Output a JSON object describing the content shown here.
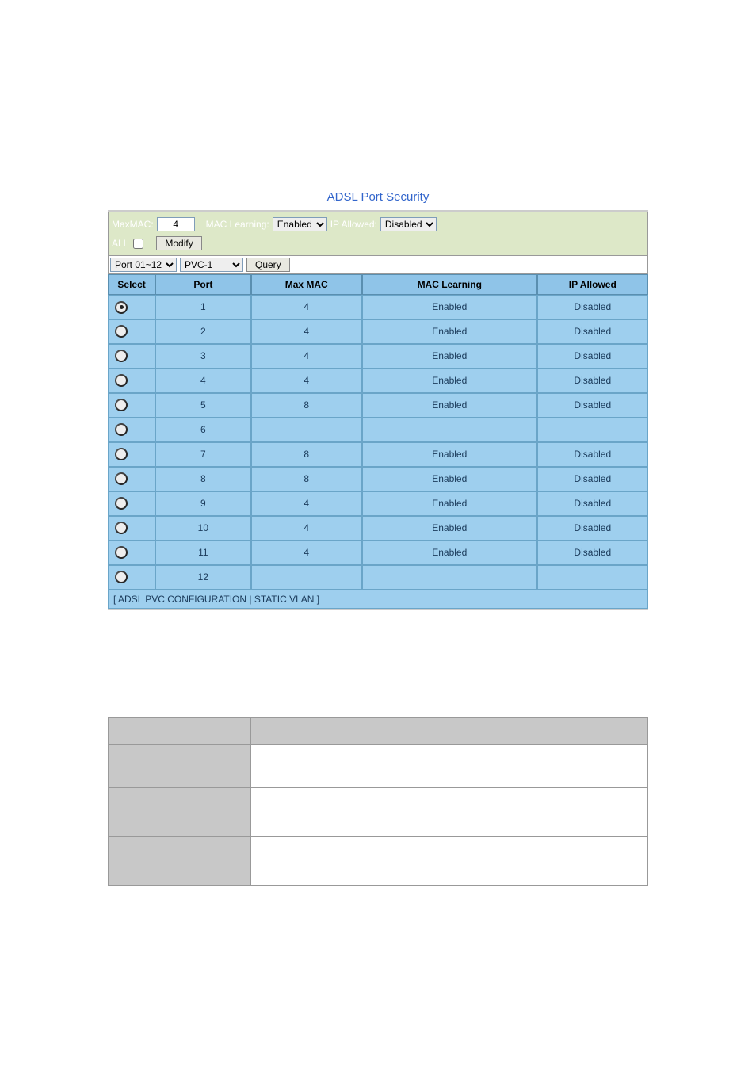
{
  "title": "ADSL Port Security",
  "controls": {
    "maxmac_label": "MaxMAC:",
    "maxmac_value": "4",
    "maclearn_label": "MAC Learning:",
    "maclearn_value": "Enabled",
    "ipallowed_label": "IP Allowed:",
    "ipallowed_value": "Disabled",
    "all_label": "ALL",
    "modify_btn": "Modify",
    "port_range": "Port 01~12",
    "pvc": "PVC-1",
    "query_btn": "Query"
  },
  "table": {
    "headers": {
      "select": "Select",
      "port": "Port",
      "maxmac": "Max MAC",
      "maclearn": "MAC Learning",
      "ipallowed": "IP Allowed"
    },
    "rows": [
      {
        "selected": true,
        "port": "1",
        "maxmac": "4",
        "maclearn": "Enabled",
        "ipallowed": "Disabled"
      },
      {
        "selected": false,
        "port": "2",
        "maxmac": "4",
        "maclearn": "Enabled",
        "ipallowed": "Disabled"
      },
      {
        "selected": false,
        "port": "3",
        "maxmac": "4",
        "maclearn": "Enabled",
        "ipallowed": "Disabled"
      },
      {
        "selected": false,
        "port": "4",
        "maxmac": "4",
        "maclearn": "Enabled",
        "ipallowed": "Disabled"
      },
      {
        "selected": false,
        "port": "5",
        "maxmac": "8",
        "maclearn": "Enabled",
        "ipallowed": "Disabled"
      },
      {
        "selected": false,
        "port": "6",
        "maxmac": "",
        "maclearn": "",
        "ipallowed": ""
      },
      {
        "selected": false,
        "port": "7",
        "maxmac": "8",
        "maclearn": "Enabled",
        "ipallowed": "Disabled"
      },
      {
        "selected": false,
        "port": "8",
        "maxmac": "8",
        "maclearn": "Enabled",
        "ipallowed": "Disabled"
      },
      {
        "selected": false,
        "port": "9",
        "maxmac": "4",
        "maclearn": "Enabled",
        "ipallowed": "Disabled"
      },
      {
        "selected": false,
        "port": "10",
        "maxmac": "4",
        "maclearn": "Enabled",
        "ipallowed": "Disabled"
      },
      {
        "selected": false,
        "port": "11",
        "maxmac": "4",
        "maclearn": "Enabled",
        "ipallowed": "Disabled"
      },
      {
        "selected": false,
        "port": "12",
        "maxmac": "",
        "maclearn": "",
        "ipallowed": ""
      }
    ]
  },
  "footer": {
    "open": "[ ",
    "link1": "ADSL PVC CONFIGURATION",
    "sep": " | ",
    "link2": "STATIC VLAN",
    "close": " ]"
  },
  "colors": {
    "title": "#3366cc",
    "control_bg": "#dde8c8",
    "header_bg": "#8fc4e8",
    "row_bg": "#9ecfee",
    "border": "#6aa5c8",
    "lower_header_bg": "#c8c8c8"
  }
}
